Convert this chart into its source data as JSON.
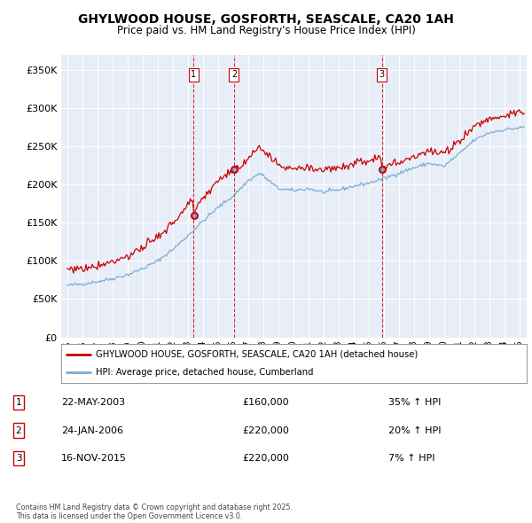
{
  "title": "GHYLWOOD HOUSE, GOSFORTH, SEASCALE, CA20 1AH",
  "subtitle": "Price paid vs. HM Land Registry's House Price Index (HPI)",
  "legend_line1": "GHYLWOOD HOUSE, GOSFORTH, SEASCALE, CA20 1AH (detached house)",
  "legend_line2": "HPI: Average price, detached house, Cumberland",
  "footer": "Contains HM Land Registry data © Crown copyright and database right 2025.\nThis data is licensed under the Open Government Licence v3.0.",
  "sale_color": "#cc0000",
  "hpi_color": "#7aadd4",
  "vline_color": "#cc0000",
  "sale_events": [
    {
      "label": "1",
      "date_num": 2003.38,
      "price": 160000,
      "pct": "35% ↑ HPI",
      "date_str": "22-MAY-2003"
    },
    {
      "label": "2",
      "date_num": 2006.07,
      "price": 220000,
      "pct": "20% ↑ HPI",
      "date_str": "24-JAN-2006"
    },
    {
      "label": "3",
      "date_num": 2015.88,
      "price": 220000,
      "pct": "7% ↑ HPI",
      "date_str": "16-NOV-2015"
    }
  ],
  "ylim": [
    0,
    370000
  ],
  "yticks": [
    0,
    50000,
    100000,
    150000,
    200000,
    250000,
    300000,
    350000
  ],
  "xlim_start": 1994.6,
  "xlim_end": 2025.5,
  "xtick_years": [
    1995,
    1996,
    1997,
    1998,
    1999,
    2000,
    2001,
    2002,
    2003,
    2004,
    2005,
    2006,
    2007,
    2008,
    2009,
    2010,
    2011,
    2012,
    2013,
    2014,
    2015,
    2016,
    2017,
    2018,
    2019,
    2020,
    2021,
    2022,
    2023,
    2024,
    2025
  ],
  "background_color": "#ffffff",
  "plot_bg_color": "#e8eef8"
}
